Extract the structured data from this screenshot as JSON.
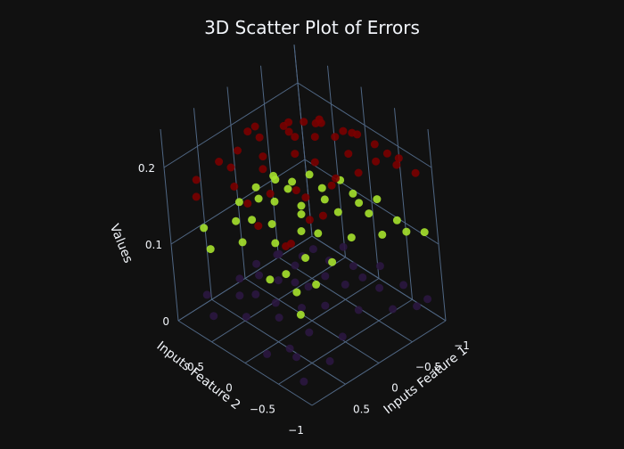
{
  "colors": {
    "background": "#111111",
    "grid": "#506784",
    "text": "#f2f5fa",
    "series_red": "#7a0000",
    "series_green": "#a6e22e",
    "series_purple": "#2b1740"
  },
  "chart_data": {
    "type": "scatter",
    "is_3d": true,
    "title": "3D Scatter Plot of Errors",
    "axes": {
      "x": {
        "label": "Inputs Feature 1",
        "range": [
          -1,
          1
        ],
        "ticks": [
          -1,
          -0.5,
          0,
          0.5
        ],
        "tick_labels": [
          "−1",
          "−0.5",
          "0",
          "0.5"
        ]
      },
      "y": {
        "label": "Inputs Feature 2",
        "range": [
          -1,
          1
        ],
        "ticks": [
          -1,
          -0.5,
          0,
          0.5
        ],
        "tick_labels": [
          "−1",
          "−0.5",
          "0",
          "0.5"
        ]
      },
      "z": {
        "label": "Values",
        "range": [
          0,
          0.25
        ],
        "ticks": [
          0,
          0.1,
          0.2
        ],
        "tick_labels": [
          "0",
          "0.1",
          "0.2"
        ]
      }
    },
    "grid": true,
    "legend": "none",
    "series": [
      {
        "color": "#7a0000",
        "points": [
          [
            0.95,
            -0.85,
            0.2
          ],
          [
            0.85,
            -0.65,
            0.18
          ],
          [
            0.9,
            -0.3,
            0.19
          ],
          [
            0.7,
            -0.9,
            0.22
          ],
          [
            0.55,
            -0.7,
            0.23
          ],
          [
            0.6,
            -0.2,
            0.21
          ],
          [
            0.45,
            -0.45,
            0.22
          ],
          [
            0.3,
            -0.85,
            0.24
          ],
          [
            0.1,
            -0.7,
            0.23
          ],
          [
            0.2,
            -0.2,
            0.24
          ],
          [
            -0.05,
            -0.9,
            0.24
          ],
          [
            -0.2,
            -0.6,
            0.24
          ],
          [
            -0.4,
            -0.8,
            0.23
          ],
          [
            -0.3,
            -0.3,
            0.24
          ],
          [
            -0.6,
            -0.9,
            0.22
          ],
          [
            -0.75,
            -0.6,
            0.21
          ],
          [
            -0.9,
            -0.85,
            0.19
          ],
          [
            -0.85,
            -0.3,
            0.2
          ],
          [
            -0.6,
            -0.1,
            0.22
          ],
          [
            -0.4,
            0.1,
            0.23
          ],
          [
            -0.9,
            0.1,
            0.19
          ],
          [
            -0.7,
            0.35,
            0.2
          ],
          [
            -0.9,
            0.6,
            0.18
          ],
          [
            -0.55,
            0.7,
            0.19
          ],
          [
            -0.3,
            0.5,
            0.21
          ],
          [
            -0.1,
            0.2,
            0.23
          ],
          [
            0.1,
            0.45,
            0.22
          ],
          [
            -0.05,
            0.8,
            0.2
          ],
          [
            0.3,
            0.2,
            0.22
          ],
          [
            0.5,
            0.5,
            0.2
          ],
          [
            0.35,
            0.85,
            0.18
          ],
          [
            0.7,
            0.25,
            0.2
          ],
          [
            0.85,
            0.7,
            0.17
          ],
          [
            0.65,
            0.9,
            0.17
          ],
          [
            0.0,
            0.0,
            0.24
          ],
          [
            0.15,
            -0.45,
            0.24
          ],
          [
            -0.15,
            -0.15,
            0.24
          ],
          [
            0.45,
            0.05,
            0.22
          ],
          [
            -0.5,
            0.4,
            0.21
          ],
          [
            0.25,
            0.65,
            0.2
          ],
          [
            -0.75,
            -0.15,
            0.21
          ],
          [
            0.8,
            -0.05,
            0.2
          ],
          [
            -0.25,
            0.9,
            0.19
          ],
          [
            0.55,
            -0.95,
            0.22
          ],
          [
            -0.95,
            -0.55,
            0.19
          ]
        ]
      },
      {
        "color": "#a6e22e",
        "points": [
          [
            0.95,
            -0.9,
            0.11
          ],
          [
            0.8,
            -0.7,
            0.12
          ],
          [
            0.85,
            -0.35,
            0.12
          ],
          [
            0.65,
            -0.85,
            0.13
          ],
          [
            0.5,
            -0.55,
            0.14
          ],
          [
            0.55,
            -0.15,
            0.14
          ],
          [
            0.35,
            -0.8,
            0.14
          ],
          [
            0.2,
            -0.45,
            0.15
          ],
          [
            0.1,
            -0.1,
            0.15
          ],
          [
            0.0,
            -0.75,
            0.15
          ],
          [
            -0.2,
            -0.35,
            0.15
          ],
          [
            -0.35,
            -0.85,
            0.14
          ],
          [
            -0.5,
            -0.5,
            0.14
          ],
          [
            -0.65,
            -0.9,
            0.13
          ],
          [
            -0.8,
            -0.6,
            0.12
          ],
          [
            -0.95,
            -0.85,
            0.11
          ],
          [
            -0.9,
            -0.2,
            0.12
          ],
          [
            -0.7,
            -0.05,
            0.13
          ],
          [
            -0.45,
            0.15,
            0.14
          ],
          [
            -0.85,
            0.3,
            0.12
          ],
          [
            -0.6,
            0.5,
            0.13
          ],
          [
            -0.3,
            0.45,
            0.14
          ],
          [
            -0.1,
            0.3,
            0.15
          ],
          [
            0.15,
            0.25,
            0.15
          ],
          [
            0.35,
            0.1,
            0.14
          ],
          [
            0.7,
            0.2,
            0.13
          ],
          [
            0.5,
            0.5,
            0.13
          ],
          [
            0.25,
            0.7,
            0.13
          ],
          [
            -0.05,
            0.75,
            0.13
          ],
          [
            -0.4,
            0.85,
            0.12
          ],
          [
            0.85,
            0.55,
            0.11
          ],
          [
            0.65,
            0.85,
            0.11
          ],
          [
            0.0,
            0.0,
            0.15
          ],
          [
            0.3,
            -0.3,
            0.15
          ],
          [
            -0.25,
            -0.1,
            0.15
          ],
          [
            0.45,
            0.3,
            0.14
          ],
          [
            -0.55,
            -0.3,
            0.14
          ],
          [
            0.15,
            0.5,
            0.14
          ],
          [
            -0.2,
            0.6,
            0.14
          ],
          [
            0.75,
            -0.5,
            0.13
          ]
        ]
      },
      {
        "color": "#2b1740",
        "points": [
          [
            0.95,
            -0.85,
            0.02
          ],
          [
            0.8,
            -0.6,
            0.03
          ],
          [
            0.9,
            -0.25,
            0.02
          ],
          [
            0.6,
            -0.9,
            0.03
          ],
          [
            0.5,
            -0.5,
            0.04
          ],
          [
            0.55,
            -0.1,
            0.04
          ],
          [
            0.3,
            -0.8,
            0.04
          ],
          [
            0.15,
            -0.4,
            0.05
          ],
          [
            0.05,
            -0.05,
            0.05
          ],
          [
            -0.05,
            -0.7,
            0.05
          ],
          [
            -0.25,
            -0.3,
            0.05
          ],
          [
            -0.4,
            -0.85,
            0.04
          ],
          [
            -0.55,
            -0.5,
            0.04
          ],
          [
            -0.7,
            -0.9,
            0.03
          ],
          [
            -0.85,
            -0.55,
            0.03
          ],
          [
            -0.95,
            -0.8,
            0.02
          ],
          [
            -0.9,
            -0.15,
            0.03
          ],
          [
            -0.7,
            0.05,
            0.03
          ],
          [
            -0.5,
            0.2,
            0.04
          ],
          [
            -0.85,
            0.35,
            0.03
          ],
          [
            -0.6,
            0.55,
            0.03
          ],
          [
            -0.35,
            0.45,
            0.04
          ],
          [
            -0.1,
            0.3,
            0.05
          ],
          [
            0.2,
            0.25,
            0.05
          ],
          [
            0.4,
            0.1,
            0.04
          ],
          [
            0.7,
            0.25,
            0.03
          ],
          [
            0.5,
            0.55,
            0.03
          ],
          [
            0.3,
            0.75,
            0.03
          ],
          [
            0.0,
            0.8,
            0.03
          ],
          [
            -0.35,
            0.85,
            0.02
          ],
          [
            0.85,
            0.6,
            0.02
          ],
          [
            0.65,
            0.9,
            0.02
          ],
          [
            0.1,
            0.1,
            0.05
          ],
          [
            0.35,
            -0.25,
            0.05
          ],
          [
            -0.2,
            -0.05,
            0.05
          ],
          [
            0.45,
            0.35,
            0.04
          ],
          [
            -0.55,
            -0.25,
            0.04
          ],
          [
            0.2,
            0.55,
            0.04
          ],
          [
            -0.2,
            0.65,
            0.04
          ],
          [
            0.75,
            -0.45,
            0.03
          ]
        ]
      }
    ]
  }
}
